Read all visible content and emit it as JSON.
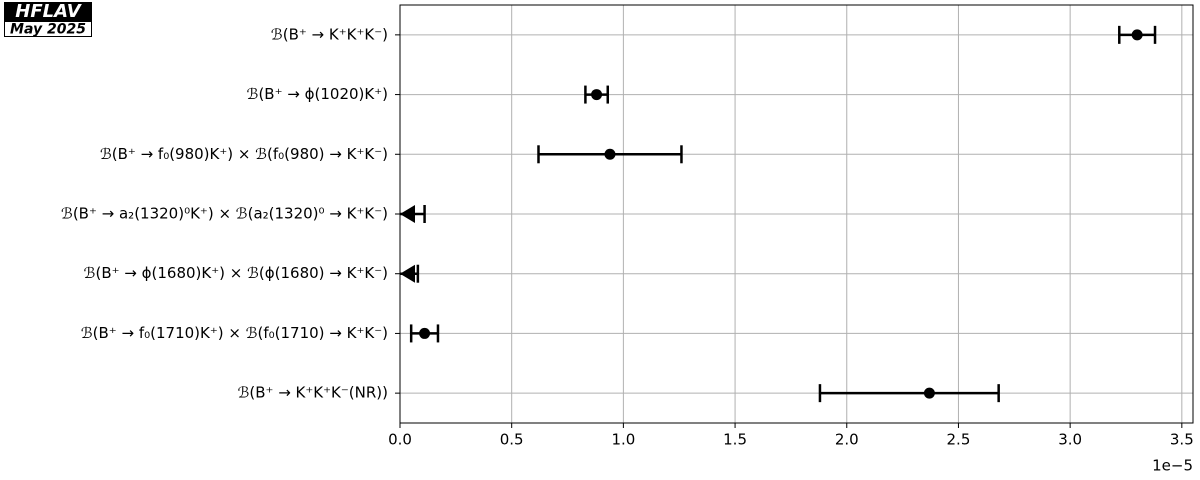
{
  "chart_data": {
    "type": "errorbar",
    "badge": "HFLAV",
    "date": "May 2025",
    "categories": [
      "ℬ(B⁺ → K⁺K⁺K⁻)",
      "ℬ(B⁺ → ϕ(1020)K⁺)",
      "ℬ(B⁺ → f₀(980)K⁺) × ℬ(f₀(980) → K⁺K⁻)",
      "ℬ(B⁺ → a₂(1320)⁰K⁺) × ℬ(a₂(1320)⁰ → K⁺K⁻)",
      "ℬ(B⁺ → ϕ(1680)K⁺) × ℬ(ϕ(1680) → K⁺K⁻)",
      "ℬ(B⁺ → f₀(1710)K⁺) × ℬ(f₀(1710) → K⁺K⁻)",
      "ℬ(B⁺ → K⁺K⁺K⁻(NR))"
    ],
    "values": [
      3.3,
      0.88,
      0.94,
      null,
      null,
      0.11,
      2.37
    ],
    "errors_minus": [
      0.08,
      0.05,
      0.32,
      null,
      null,
      0.06,
      0.49
    ],
    "errors_plus": [
      0.08,
      0.05,
      0.32,
      null,
      null,
      0.06,
      0.31
    ],
    "upper_limits": [
      null,
      null,
      null,
      0.11,
      0.08,
      null,
      null
    ],
    "color": "#000000",
    "xlim": [
      0,
      3.55
    ],
    "xticks": [
      {
        "value": 0,
        "label": "0.0"
      },
      0.5,
      {
        "value": 1,
        "label": "1.0"
      },
      1.5,
      {
        "value": 2,
        "label": "2.0"
      },
      2.5,
      {
        "value": 3,
        "label": "3.0"
      },
      3.5
    ],
    "x_offset_label": "1e−5",
    "grid": true
  }
}
